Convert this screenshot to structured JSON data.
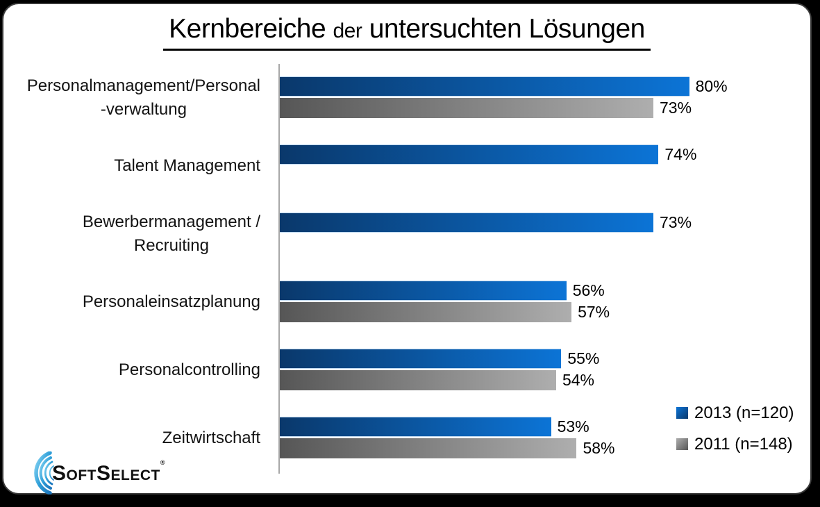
{
  "title": {
    "part1": "Kernbereiche",
    "part2": "der",
    "part3": "untersuchten Lösungen"
  },
  "legend": [
    {
      "label": "2013 (n=120)",
      "color": "blue"
    },
    {
      "label": "2011 (n=148)",
      "color": "gray"
    }
  ],
  "logo": {
    "word1": "Soft",
    "word2": "Select",
    "registered": "®"
  },
  "colors": {
    "bar_2013_dark": "#0a386b",
    "bar_2013_light": "#0c74d6",
    "bar_2011_dark": "#565656",
    "bar_2011_light": "#aeaeae",
    "axis_line": "#a8a8a8",
    "background": "#ffffff",
    "frame": "#000000"
  },
  "chart_data": {
    "type": "bar",
    "orientation": "horizontal",
    "title": "Kernbereiche der untersuchten Lösungen",
    "categories": [
      [
        "Personalmanagement/Personal",
        "-verwaltung"
      ],
      [
        "Talent Management"
      ],
      [
        "Bewerbermanagement /",
        "Recruiting"
      ],
      [
        "Personaleinsatzplanung"
      ],
      [
        "Personalcontrolling"
      ],
      [
        "Zeitwirtschaft"
      ]
    ],
    "series": [
      {
        "name": "2013 (n=120)",
        "values": [
          80,
          74,
          73,
          56,
          55,
          53
        ]
      },
      {
        "name": "2011 (n=148)",
        "values": [
          73,
          null,
          null,
          57,
          54,
          58
        ]
      }
    ],
    "value_suffix": "%",
    "xlim": [
      0,
      100
    ],
    "grid": false,
    "legend_position": "bottom-right",
    "data_labels": true
  }
}
